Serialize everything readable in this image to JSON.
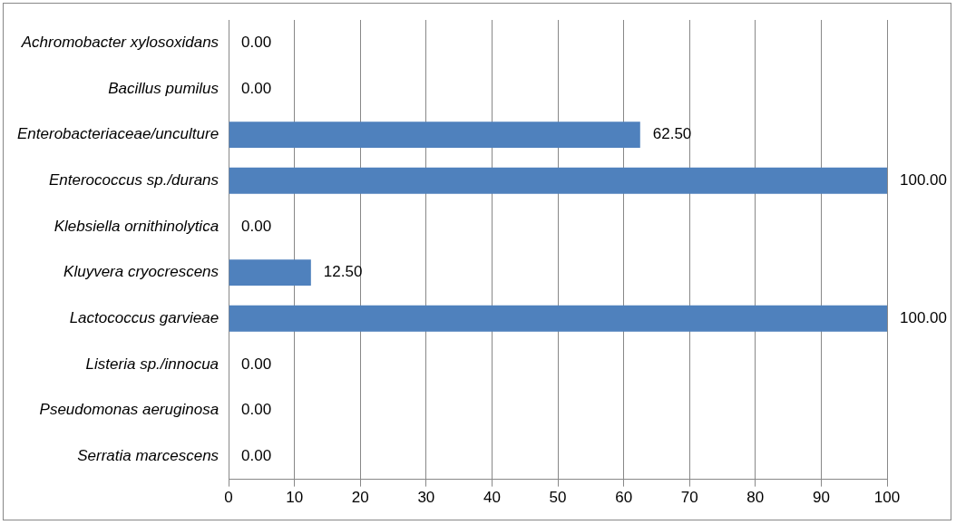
{
  "chart_data": {
    "type": "bar",
    "orientation": "horizontal",
    "categories": [
      "Achromobacter xylosoxidans",
      "Bacillus pumilus",
      "Enterobacteriaceae/unculture",
      "Enterococcus sp./durans",
      "Klebsiella ornithinolytica",
      "Kluyvera cryocrescens",
      "Lactococcus garvieae",
      "Listeria sp./innocua",
      "Pseudomonas aeruginosa",
      "Serratia marcescens"
    ],
    "values": [
      0,
      0,
      62.5,
      100,
      0,
      12.5,
      100,
      0,
      0,
      0
    ],
    "value_labels": [
      "0.00",
      "0.00",
      "62.50",
      "100.00",
      "0.00",
      "12.50",
      "100.00",
      "0.00",
      "0.00",
      "0.00"
    ],
    "color": "#4f81bd",
    "xlim": [
      0,
      100
    ],
    "xticks": [
      0,
      10,
      20,
      30,
      40,
      50,
      60,
      70,
      80,
      90,
      100
    ],
    "grid": "x",
    "legend": false
  }
}
